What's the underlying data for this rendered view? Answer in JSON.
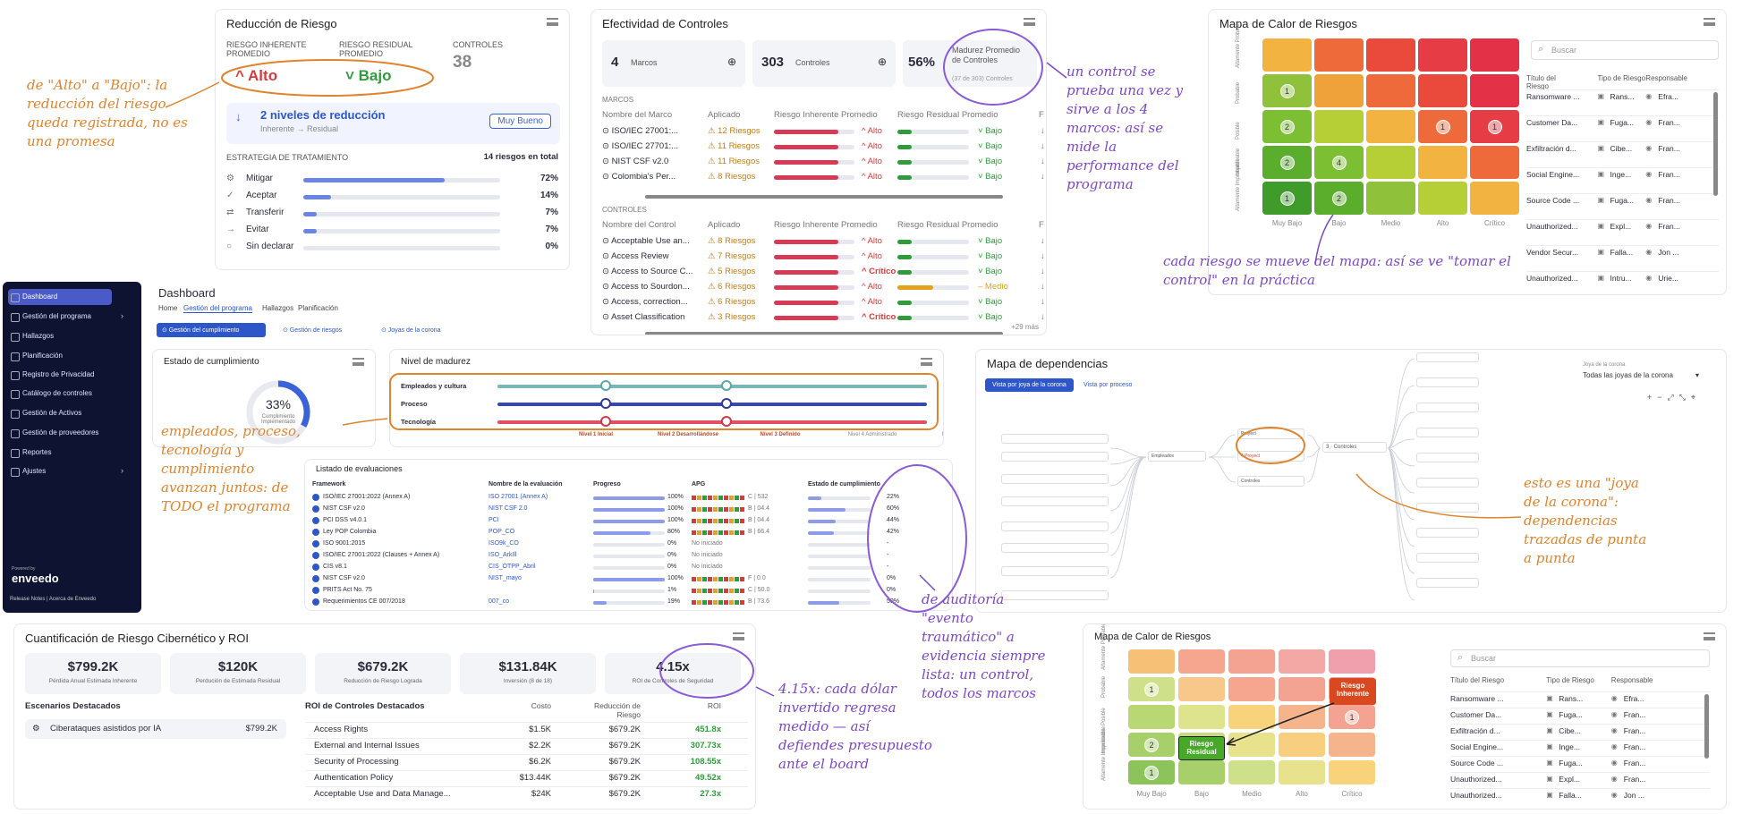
{
  "risk_reduction": {
    "title": "Reducción de Riesgo",
    "inh_label": "RIESGO INHERENTE PROMEDIO",
    "res_label": "RIESGO RESIDUAL PROMEDIO",
    "ctl_label": "CONTROLES",
    "ctl_value": "38",
    "inh_value": "Alto",
    "res_value": "Bajo",
    "levels": "2 niveles de reducción",
    "levels_sub": "Inherente → Residual",
    "badge": "Muy Bueno",
    "strategy_label": "ESTRATEGIA DE TRATAMIENTO",
    "strategy_total": "14 riesgos en total",
    "strategies": [
      {
        "label": "Mitigar",
        "pct": "72%",
        "v": 0.72
      },
      {
        "label": "Aceptar",
        "pct": "14%",
        "v": 0.14
      },
      {
        "label": "Transferir",
        "pct": "7%",
        "v": 0.07
      },
      {
        "label": "Evitar",
        "pct": "7%",
        "v": 0.07
      },
      {
        "label": "Sin declarar",
        "pct": "0%",
        "v": 0
      }
    ]
  },
  "controls": {
    "title": "Efectividad de Controles",
    "marcos_n": "4",
    "marcos_l": "Marcos",
    "ctl_n": "303",
    "ctl_l": "Controles",
    "mat_n": "56%",
    "mat_l": "Madurez Promedio de Controles",
    "mat_sub": "(37 de 303) Controles",
    "marcos_head": "MARCOS",
    "h1": "Nombre del Marco",
    "h2": "Aplicado",
    "h3": "Riesgo Inherente Promedio",
    "h4": "Riesgo Residual Promedio",
    "h5": "F",
    "marcos": [
      {
        "n": "ISO/IEC 27001:...",
        "a": "12 Riesgos",
        "i": "Alto",
        "r": "Bajo"
      },
      {
        "n": "ISO/IEC 27701:...",
        "a": "11 Riesgos",
        "i": "Alto",
        "r": "Bajo"
      },
      {
        "n": "NIST CSF v2.0",
        "a": "11 Riesgos",
        "i": "Alto",
        "r": "Bajo"
      },
      {
        "n": "Colombia's Per...",
        "a": "8 Riesgos",
        "i": "Alto",
        "r": "Bajo"
      }
    ],
    "ctl_head": "CONTROLES",
    "c1": "Nombre del Control",
    "rows": [
      {
        "n": "Acceptable Use an...",
        "a": "8 Riesgos",
        "i": "Alto",
        "r": "Bajo"
      },
      {
        "n": "Access Review",
        "a": "7 Riesgos",
        "i": "Alto",
        "r": "Bajo"
      },
      {
        "n": "Access to Source C...",
        "a": "5 Riesgos",
        "i": "Crítico",
        "r": "Bajo"
      },
      {
        "n": "Access to Sourdon...",
        "a": "6 Riesgos",
        "i": "Alto",
        "r": "Medio"
      },
      {
        "n": "Access, correction...",
        "a": "6 Riesgos",
        "i": "Alto",
        "r": "Bajo"
      },
      {
        "n": "Asset Classification",
        "a": "3 Riesgos",
        "i": "Crítico",
        "r": "Bajo"
      }
    ],
    "more": "+29 más"
  },
  "heat1": {
    "title": "Mapa de Calor de Riesgos",
    "search": "Buscar",
    "x": [
      "Muy Bajo",
      "Bajo",
      "Medio",
      "Alto",
      "Crítico"
    ],
    "y": [
      "Altamente Probable",
      "Probable",
      "Posible",
      "Improbable",
      "Altamente Improbable"
    ],
    "dots": [
      {
        "r": 1,
        "c": 0,
        "t": "1"
      },
      {
        "r": 2,
        "c": 0,
        "t": "2"
      },
      {
        "r": 2,
        "c": 3,
        "t": "1"
      },
      {
        "r": 2,
        "c": 4,
        "t": "1"
      },
      {
        "r": 3,
        "c": 0,
        "t": "2"
      },
      {
        "r": 3,
        "c": 1,
        "t": "4"
      },
      {
        "r": 4,
        "c": 0,
        "t": "1"
      },
      {
        "r": 4,
        "c": 1,
        "t": "2"
      }
    ],
    "cols": [
      "Título del Riesgo",
      "Tipo de Riesgo",
      "Responsable"
    ],
    "rows": [
      [
        "Ransomware ...",
        "Rans...",
        "Efra..."
      ],
      [
        "Customer Da...",
        "Fuga...",
        "Fran..."
      ],
      [
        "Exfiltración d...",
        "Cibe...",
        "Fran..."
      ],
      [
        "Social Engine...",
        "Inge...",
        "Fran..."
      ],
      [
        "Source Code ...",
        "Fuga...",
        "Fran..."
      ],
      [
        "Unauthorized...",
        "Expl...",
        "Fran..."
      ],
      [
        "Vendor Secur...",
        "Falla...",
        "Jon ..."
      ],
      [
        "Unauthorized...",
        "Intru...",
        "Urie..."
      ]
    ]
  },
  "sidebar": {
    "items": [
      "Dashboard",
      "Gestión del programa",
      "Hallazgos",
      "Planificación",
      "Registro de Privacidad",
      "Catálogo de controles",
      "Gestión de Activos",
      "Gestión de proveedores",
      "Reportes",
      "Ajustes"
    ],
    "powered": "Powered by",
    "brand": "enveedo",
    "footer": "Release Notes  |  Acerca de Enveedo"
  },
  "dashboard": {
    "title": "Dashboard",
    "tabs": [
      "Home",
      "Gestión del programa",
      "Hallazgos",
      "Planificación"
    ],
    "subtabs": [
      "Gestión del cumplimiento",
      "Gestión de riesgos",
      "Joyas de la corona"
    ],
    "compliance": {
      "title": "Estado de cumplimiento",
      "pct": "33%",
      "label": "Cumplimiento Implementado"
    },
    "maturity": {
      "title": "Nivel de madurez",
      "rows": [
        "Empleados y cultura",
        "Proceso",
        "Tecnología"
      ],
      "levels": [
        "Nivel 1 Inicial",
        "Nivel 2 Desarrollándose",
        "Nivel 3 Definido",
        "Nivel 4 Administrado",
        "Nivel 5 Optimizado"
      ]
    },
    "evals": {
      "title": "Listado de evaluaciones",
      "cols": [
        "Framework",
        "Nombre de la evaluación",
        "Progreso",
        "APG",
        "Estado de cumplimiento"
      ],
      "rows": [
        {
          "f": "ISO/IEC 27001:2022 (Annex A)",
          "n": "ISO 27001 (Annex A)",
          "p": "100%",
          "pv": 1,
          "a": "C | 532",
          "s": "22%",
          "sv": 0.22
        },
        {
          "f": "NIST CSF v2.0",
          "n": "NIST CSF 2.0",
          "p": "100%",
          "pv": 1,
          "a": "B | 04.4",
          "s": "60%",
          "sv": 0.6
        },
        {
          "f": "PCI DSS v4.0.1",
          "n": "PCI",
          "p": "100%",
          "pv": 1,
          "a": "B | 04.4",
          "s": "44%",
          "sv": 0.44
        },
        {
          "f": "Ley POP Colombia",
          "n": "POP_CO",
          "p": "80%",
          "pv": 0.8,
          "a": "B | 66.4",
          "s": "42%",
          "sv": 0.42
        },
        {
          "f": "ISO 9001:2015",
          "n": "ISO9k_CO",
          "p": "0%",
          "pv": 0,
          "a": "No iniciado",
          "s": "-",
          "sv": 0
        },
        {
          "f": "ISO/IEC 27001:2022 (Clauses + Annex A)",
          "n": "ISO_ArkIll",
          "p": "0%",
          "pv": 0,
          "a": "No iniciado",
          "s": "-",
          "sv": 0
        },
        {
          "f": "CIS v8.1",
          "n": "CIS_OTPP_Abril",
          "p": "0%",
          "pv": 0,
          "a": "No iniciado",
          "s": "-",
          "sv": 0
        },
        {
          "f": "NIST CSF v2.0",
          "n": "NIST_mayo",
          "p": "100%",
          "pv": 1,
          "a": "F | 0.0",
          "s": "0%",
          "sv": 0
        },
        {
          "f": "PRITS Act No. 75",
          "n": "",
          "p": "1%",
          "pv": 0.01,
          "a": "C | 50.0",
          "s": "0%",
          "sv": 0
        },
        {
          "f": "Requerimientos CE 007/2018",
          "n": "007_co",
          "p": "19%",
          "pv": 0.19,
          "a": "B | 73.6",
          "s": "50%",
          "sv": 0.5
        }
      ]
    }
  },
  "depmap": {
    "title": "Mapa de dependencias",
    "tab1": "Vista por joya de la corona",
    "tab2": "Vista por proceso",
    "sel_label": "Joya de la corona",
    "sel_value": "Todas las joyas de la corona",
    "n1": "Empleados",
    "n2": "Proyect",
    "n3": "Controles",
    "n4": "Controles"
  },
  "roi": {
    "title": "Cuantificación de Riesgo Cibernético y ROI",
    "kpis": [
      {
        "v": "$799.2K",
        "l": "Pérdida Anual Estimada Inherente"
      },
      {
        "v": "$120K",
        "l": "Perdución de Estimada Residual"
      },
      {
        "v": "$679.2K",
        "l": "Reducción de Riesgo Lograda"
      },
      {
        "v": "$131.84K",
        "l": "Inversión (8 de 18)"
      },
      {
        "v": "4.15x",
        "l": "ROI de Controles de Seguridad"
      }
    ],
    "scen_title": "Escenarios Destacados",
    "scen": "Ciberataques asistidos por IA",
    "scen_v": "$799.2K",
    "tbl_title": "ROI de Controles Destacados",
    "cols": [
      "Costo",
      "Reducción de Riesgo",
      "ROI"
    ],
    "rows": [
      [
        "Access Rights",
        "$1.5K",
        "$679.2K",
        "451.8x"
      ],
      [
        "External and Internal Issues",
        "$2.2K",
        "$679.2K",
        "307.73x"
      ],
      [
        "Security of Processing",
        "$6.2K",
        "$679.2K",
        "108.55x"
      ],
      [
        "Authentication Policy",
        "$13.44K",
        "$679.2K",
        "49.52x"
      ],
      [
        "Acceptable Use and Data Manage...",
        "$24K",
        "$679.2K",
        "27.3x"
      ]
    ]
  },
  "heat2": {
    "title": "Mapa de Calor de Riesgos",
    "search": "Buscar",
    "x": [
      "Muy Bajo",
      "Bajo",
      "Medio",
      "Alto",
      "Crítico"
    ],
    "y": [
      "Altamente Probable",
      "Probable",
      "Posible",
      "Improbable",
      "Altamente Improbable"
    ],
    "tag1": "Riesgo Inherente",
    "tag2": "Riesgo Residual",
    "dots": [
      {
        "r": 1,
        "c": 0,
        "t": "1"
      },
      {
        "r": 3,
        "c": 0,
        "t": "2"
      },
      {
        "r": 4,
        "c": 0,
        "t": "1"
      },
      {
        "r": 2,
        "c": 4,
        "t": "1"
      }
    ],
    "cols": [
      "Título del Riesgo",
      "Tipo de Riesgo",
      "Responsable"
    ],
    "rows": [
      [
        "Ransomware ...",
        "Rans...",
        "Efra..."
      ],
      [
        "Customer Da...",
        "Fuga...",
        "Fran..."
      ],
      [
        "Exfiltración d...",
        "Cibe...",
        "Fran..."
      ],
      [
        "Social Engine...",
        "Inge...",
        "Fran..."
      ],
      [
        "Source Code ...",
        "Fuga...",
        "Fran..."
      ],
      [
        "Unauthorized...",
        "Expl...",
        "Fran..."
      ],
      [
        "Unauthorized...",
        "Falla...",
        "Jon ..."
      ]
    ]
  },
  "notes": {
    "a": "de \"Alto\" a \"Bajo\": la reducción del riesgo queda registrada, no es una promesa",
    "b": "un control se prueba una vez y sirve a los 4 marcos: así se mide la performance del programa",
    "c": "cada riesgo se mueve del mapa: así se ve \"tomar el control\" en la práctica",
    "d": "empleados, proceso, tecnología y cumplimiento avanzan juntos: de TODO el programa",
    "e": "esto es una \"joya de la corona\": dependencias trazadas de punta a punta",
    "f": "de auditoría \"evento traumático\" a evidencia siempre lista: un control, todos los marcos",
    "g": "4.15x: cada dólar invertido regresa medido — así defiendes presupuesto ante el board"
  }
}
